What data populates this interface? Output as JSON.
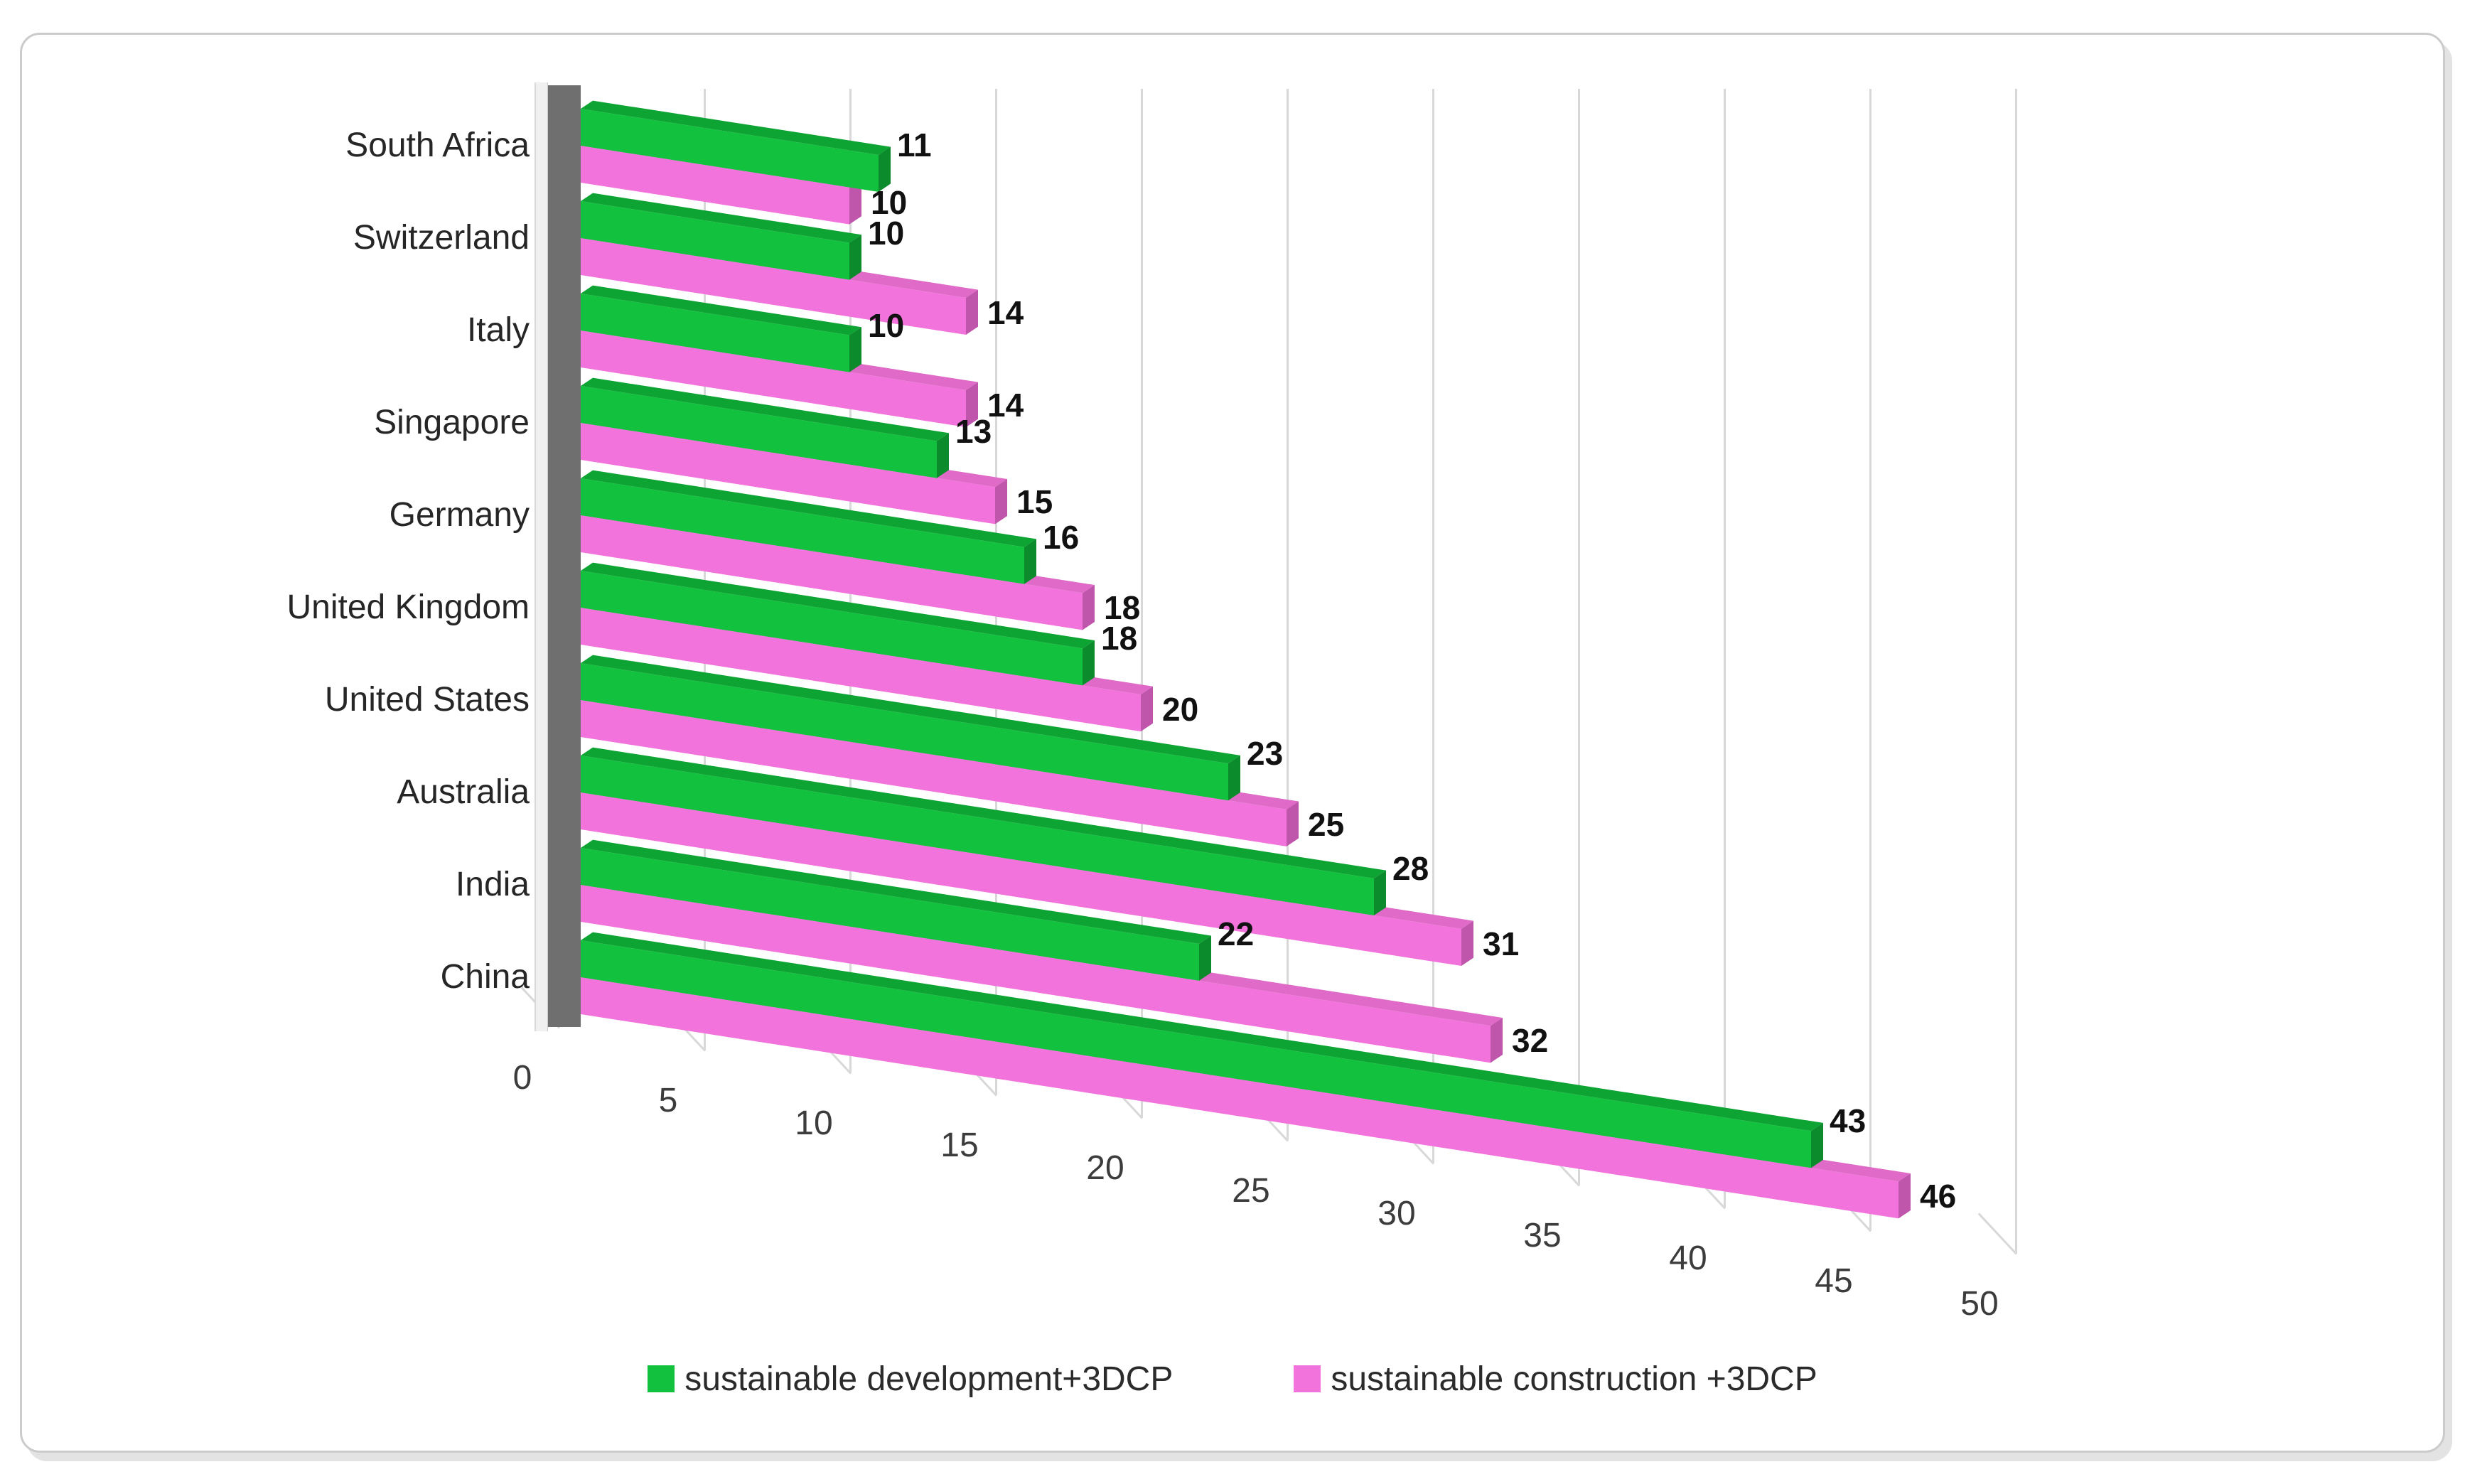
{
  "figure": {
    "background": "#ffffff",
    "card_border_color": "#cbcbcb",
    "card_shadow_color": "#e3e3e3"
  },
  "chart_data": {
    "type": "bar",
    "subtype": "3d-horizontal-clustered",
    "title": "",
    "xlabel": "",
    "ylabel": "",
    "categories": [
      "South Africa",
      "Switzerland",
      "Italy",
      "Singapore",
      "Germany",
      "United Kingdom",
      "United States",
      "Australia",
      "India",
      "China"
    ],
    "series": [
      {
        "name": "sustainable development+3DCP",
        "color": "#12c23e",
        "color_top": "#0ea434",
        "color_end": "#0b8b2c",
        "values": [
          11,
          10,
          10,
          13,
          16,
          18,
          23,
          28,
          22,
          43
        ]
      },
      {
        "name": "sustainable construction +3DCP",
        "color": "#f273db",
        "color_top": "#e06ac8",
        "color_end": "#c055ac",
        "values": [
          10,
          14,
          14,
          15,
          18,
          20,
          25,
          31,
          32,
          46
        ]
      }
    ],
    "xticks": [
      0,
      5,
      10,
      15,
      20,
      25,
      30,
      35,
      40,
      45,
      50
    ],
    "xlim": [
      0,
      50
    ],
    "grid": true,
    "grid_color": "#d8d8d8",
    "wall_color": "#6f6f6f",
    "value_labels": true,
    "legend_position": "bottom"
  }
}
